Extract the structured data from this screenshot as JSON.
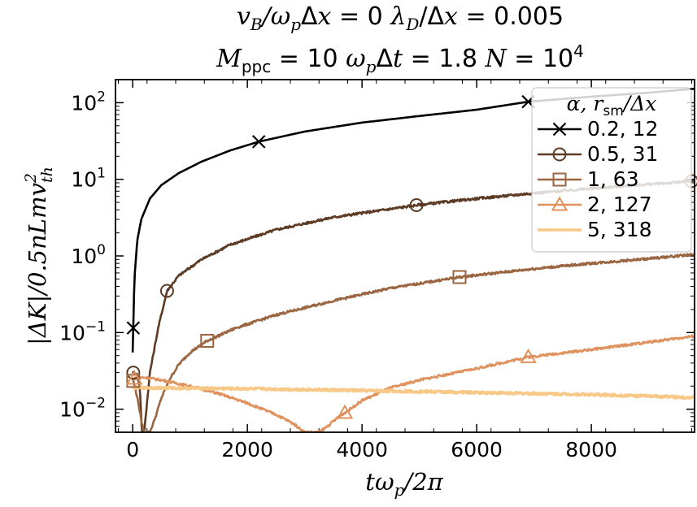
{
  "chart_data": {
    "type": "line",
    "title_line1_parts": [
      "v",
      "B",
      "/ω",
      "p",
      "Δ",
      "x",
      " = 0   ",
      "λ",
      "D",
      "/Δ",
      "x",
      " = 0.005"
    ],
    "title_line2_parts": [
      "M",
      "ppc",
      " = 10   ",
      "ω",
      "p",
      "Δ",
      "t",
      " = 1.8   ",
      "N",
      " = 10",
      "4"
    ],
    "xlabel_parts": [
      "tω",
      "p",
      "/2π"
    ],
    "ylabel_parts": [
      "|ΔK|/0.5nLmv",
      "2",
      "th"
    ],
    "x_range": [
      -300,
      9800
    ],
    "y_log_range": [
      0.005,
      200
    ],
    "x_ticks": [
      0,
      2000,
      4000,
      6000,
      8000
    ],
    "y_ticks": [
      {
        "value": 0.01,
        "mantissa": "10",
        "exp": "−2"
      },
      {
        "value": 0.1,
        "mantissa": "10",
        "exp": "−1"
      },
      {
        "value": 1,
        "mantissa": "10",
        "exp": "0"
      },
      {
        "value": 10,
        "mantissa": "10",
        "exp": "1"
      },
      {
        "value": 100,
        "mantissa": "10",
        "exp": "2"
      }
    ],
    "legend_title_parts": [
      "α, r",
      "sm",
      "/Δx"
    ],
    "series": [
      {
        "name": "0.2, 12",
        "color": "#000000",
        "marker": "x",
        "x": [
          0,
          30,
          80,
          150,
          300,
          500,
          800,
          1200,
          1700,
          2200,
          3000,
          4000,
          5000,
          6000,
          6900,
          8000,
          9000,
          9800
        ],
        "y": [
          0.055,
          0.5,
          1.6,
          3.0,
          5.6,
          8.4,
          12.0,
          17.0,
          23.8,
          31.0,
          42.0,
          55.0,
          67.0,
          81.0,
          103.0,
          120.0,
          135.0,
          152.0
        ],
        "markers_x": [
          10,
          2200,
          6900
        ]
      },
      {
        "name": "0.5, 31",
        "color": "#5c3a24",
        "marker": "o",
        "x": [
          0,
          40,
          80,
          120,
          140,
          160,
          200,
          300,
          450,
          600,
          800,
          1200,
          1700,
          2500,
          3500,
          4950,
          6000,
          7000,
          8000,
          9000,
          9800
        ],
        "y": [
          0.03,
          0.03,
          0.028,
          0.02,
          0.012,
          0.005,
          0.005,
          0.03,
          0.12,
          0.35,
          0.55,
          0.9,
          1.4,
          2.2,
          3.2,
          4.6,
          5.6,
          6.6,
          7.6,
          8.6,
          9.5
        ],
        "markers_x": [
          10,
          600,
          4950,
          9750
        ]
      },
      {
        "name": "1, 63",
        "color": "#9a6540",
        "marker": "s",
        "x": [
          0,
          50,
          100,
          150,
          200,
          260,
          300,
          400,
          500,
          650,
          800,
          1000,
          1300,
          1800,
          2500,
          3500,
          4500,
          5700,
          7000,
          8000,
          9000,
          9800
        ],
        "y": [
          0.025,
          0.018,
          0.012,
          0.007,
          0.005,
          0.005,
          0.005,
          0.008,
          0.014,
          0.025,
          0.038,
          0.055,
          0.078,
          0.115,
          0.17,
          0.26,
          0.38,
          0.53,
          0.68,
          0.8,
          0.92,
          1.05
        ],
        "markers_x": [
          10,
          1300,
          5700
        ]
      },
      {
        "name": "2, 127",
        "color": "#e0925e",
        "marker": "^",
        "x": [
          0,
          200,
          500,
          1000,
          1500,
          2000,
          2500,
          2800,
          3000,
          3100,
          3250,
          3400,
          3550,
          3650,
          3750,
          4000,
          4500,
          5000,
          6000,
          6900,
          8000,
          9000,
          9800
        ],
        "y": [
          0.025,
          0.026,
          0.024,
          0.02,
          0.016,
          0.012,
          0.0085,
          0.0065,
          0.005,
          0.005,
          0.005,
          0.006,
          0.0075,
          0.0085,
          0.0095,
          0.013,
          0.019,
          0.024,
          0.034,
          0.048,
          0.06,
          0.075,
          0.09
        ],
        "markers_x": [
          30,
          3700,
          6900
        ]
      },
      {
        "name": "5, 318",
        "color": "#f8c887",
        "marker": "none",
        "x": [
          0,
          500,
          1000,
          2000,
          3000,
          4000,
          5000,
          6000,
          7000,
          8000,
          9000,
          9800
        ],
        "y": [
          0.019,
          0.019,
          0.0188,
          0.0185,
          0.018,
          0.0175,
          0.017,
          0.0165,
          0.016,
          0.0155,
          0.0148,
          0.0142
        ],
        "markers_x": []
      }
    ]
  }
}
